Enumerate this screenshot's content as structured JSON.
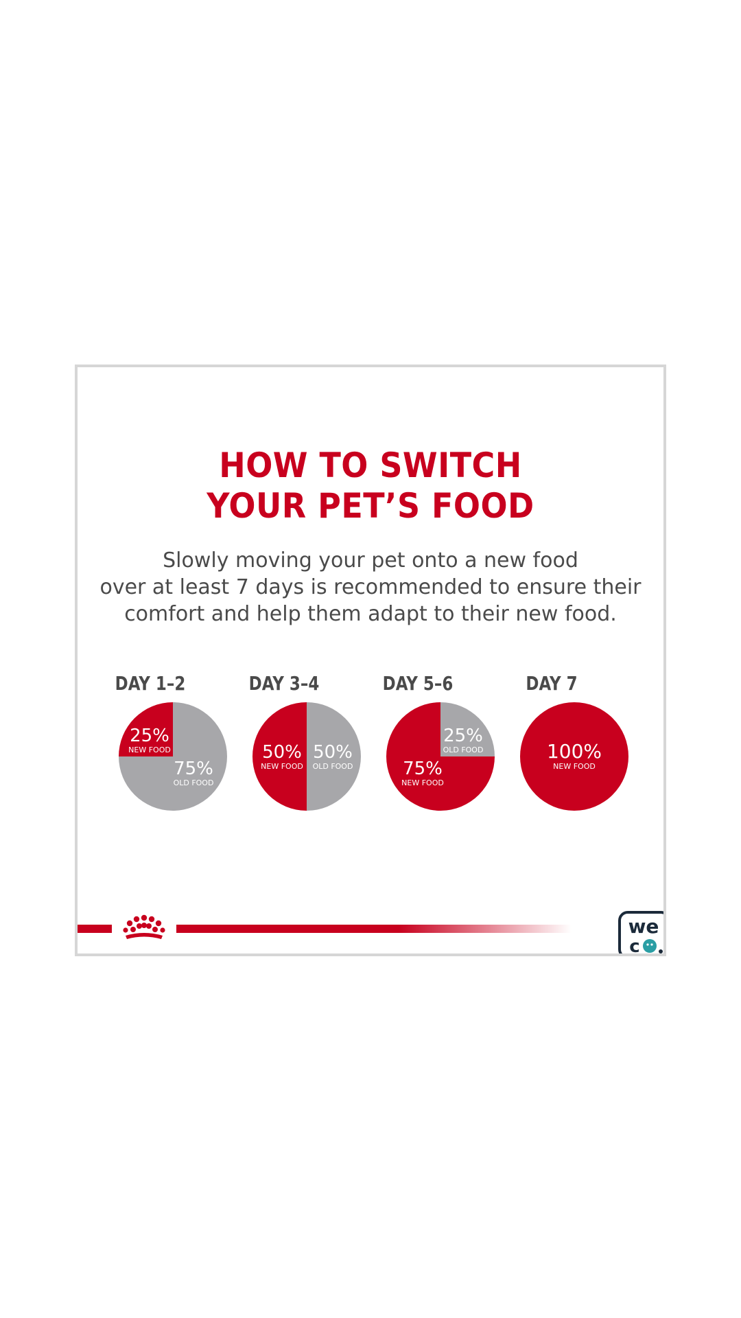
{
  "card": {
    "title_line1": "HOW TO SWITCH",
    "title_line2": "YOUR PET’S FOOD",
    "subtitle_line1": "Slowly moving your pet onto a new food",
    "subtitle_line2": "over at least 7 days is recommended to ensure their",
    "subtitle_line3": "comfort and help them adapt to their new food."
  },
  "colors": {
    "new_food": "#c8001e",
    "old_food": "#a7a7aa",
    "text_dark": "#4a4a4a",
    "logo_dark": "#1b2a3a",
    "logo_teal": "#2a9ea4"
  },
  "logos": {
    "brand_icon": "crown-icon",
    "weco_icon": "weco-logo-icon",
    "weco_text": "weco"
  },
  "chart_data": {
    "type": "pie",
    "categories": [
      "DAY 1–2",
      "DAY 3–4",
      "DAY 5–6",
      "DAY 7"
    ],
    "series": [
      {
        "name": "NEW FOOD",
        "values": [
          25,
          50,
          75,
          100
        ]
      },
      {
        "name": "OLD FOOD",
        "values": [
          75,
          50,
          25,
          0
        ]
      }
    ],
    "pies": [
      {
        "label": "DAY 1–2",
        "new_food": 25,
        "old_food": 75,
        "labels": {
          "new_pct": "25%",
          "new_txt": "NEW FOOD",
          "old_pct": "75%",
          "old_txt": "OLD FOOD"
        }
      },
      {
        "label": "DAY 3–4",
        "new_food": 50,
        "old_food": 50,
        "labels": {
          "new_pct": "50%",
          "new_txt": "NEW FOOD",
          "old_pct": "50%",
          "old_txt": "OLD FOOD"
        }
      },
      {
        "label": "DAY 5–6",
        "new_food": 75,
        "old_food": 25,
        "labels": {
          "new_pct": "75%",
          "new_txt": "NEW FOOD",
          "old_pct": "25%",
          "old_txt": "OLD FOOD"
        }
      },
      {
        "label": "DAY 7",
        "new_food": 100,
        "old_food": 0,
        "labels": {
          "new_pct": "100%",
          "new_txt": "NEW FOOD"
        }
      }
    ]
  }
}
